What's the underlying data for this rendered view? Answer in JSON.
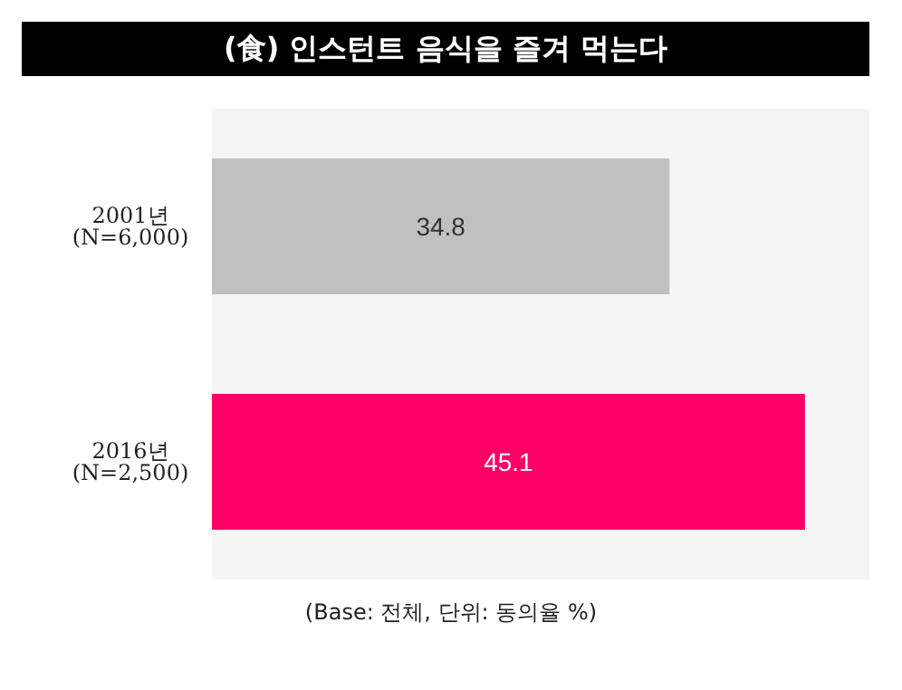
{
  "chart_data": {
    "type": "bar",
    "orientation": "horizontal",
    "title": "(食) 인스턴트 음식을 즐겨 먹는다",
    "categories": [
      "2001년\n(N=6,000)",
      "2016년\n(N=2,500)"
    ],
    "values": [
      34.8,
      45.1
    ],
    "colors": [
      "#c0c0c0",
      "#ff0066"
    ],
    "data_labels": true,
    "annotations": [
      "(Base: 전체, 단위: 동의율 %)"
    ]
  }
}
